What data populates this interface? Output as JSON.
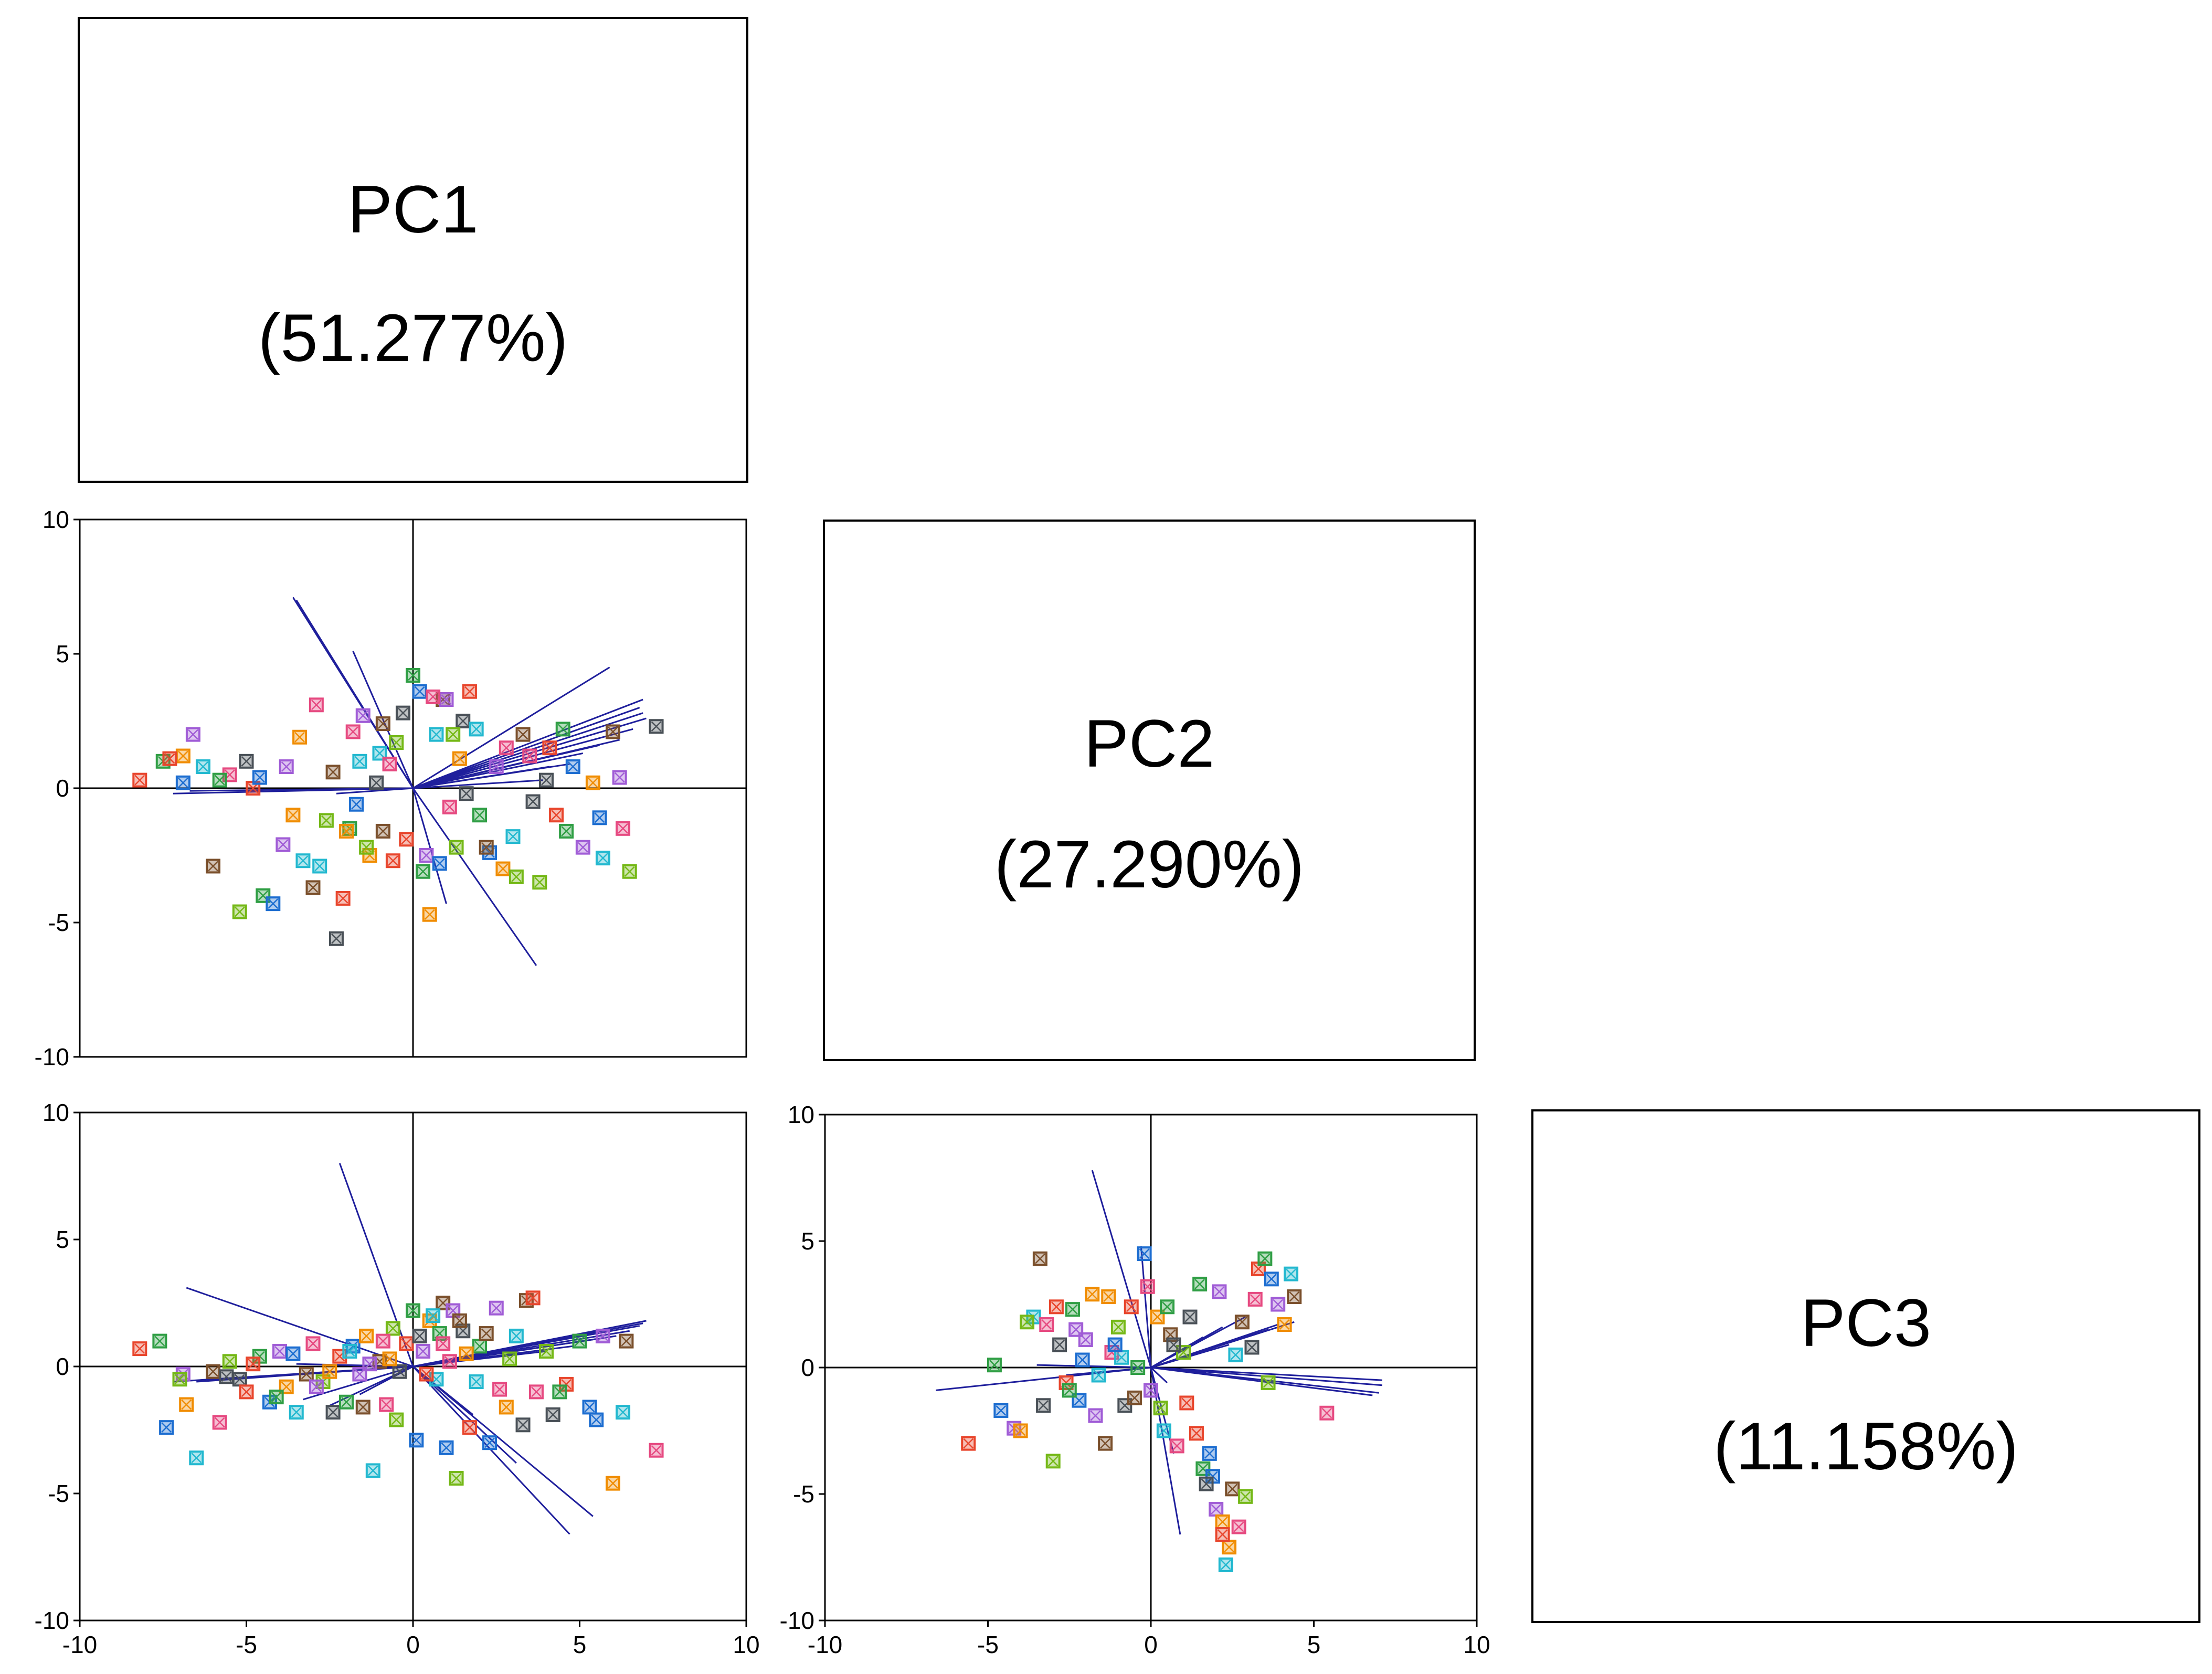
{
  "chart_data": {
    "type": "scatter",
    "title": "",
    "description_source": "PCA scatterplot matrix (biplot) with variance explained per component",
    "components": [
      {
        "name": "PC1",
        "variance": "(51.277%)"
      },
      {
        "name": "PC2",
        "variance": "(27.290%)"
      },
      {
        "name": "PC3",
        "variance": "(11.158%)"
      }
    ],
    "axis_range": [
      -10,
      10
    ],
    "ticks": [
      -10,
      -5,
      0,
      5,
      10
    ],
    "tick_labels": [
      "-10",
      "-5",
      "0",
      "5",
      "10"
    ],
    "loading_color": "#1f1f9c",
    "axis_color": "#000000",
    "point_colors": [
      "#e8452c",
      "#2f9e44",
      "#1c6dd0",
      "#a05cd6",
      "#f08c00",
      "#22b8cf",
      "#7a4f2b",
      "#e64980",
      "#74b816",
      "#495057"
    ],
    "panels": [
      {
        "id": "pc2-vs-pc1",
        "x_component": "PC1",
        "y_component": "PC2",
        "points": [
          [
            -8.2,
            0.3
          ],
          [
            -7.5,
            1.0
          ],
          [
            -6.9,
            0.2
          ],
          [
            -6.6,
            2.0
          ],
          [
            -6.9,
            1.2
          ],
          [
            -6.3,
            0.8
          ],
          [
            -6.0,
            -2.9
          ],
          [
            -5.5,
            0.5
          ],
          [
            -5.2,
            -4.6
          ],
          [
            -5.0,
            1.0
          ],
          [
            -4.8,
            0.0
          ],
          [
            -4.5,
            -4.0
          ],
          [
            -4.2,
            -4.3
          ],
          [
            -3.8,
            0.8
          ],
          [
            -3.6,
            -1.0
          ],
          [
            -3.3,
            -2.7
          ],
          [
            -3.0,
            -3.7
          ],
          [
            -2.9,
            3.1
          ],
          [
            -2.6,
            -1.2
          ],
          [
            -2.3,
            -5.6
          ],
          [
            -2.1,
            -4.1
          ],
          [
            -1.9,
            -1.5
          ],
          [
            -1.7,
            -0.6
          ],
          [
            -1.5,
            2.7
          ],
          [
            -1.3,
            -2.5
          ],
          [
            -1.0,
            1.3
          ],
          [
            -0.9,
            -1.6
          ],
          [
            -0.7,
            0.9
          ],
          [
            -0.5,
            1.7
          ],
          [
            -0.3,
            2.8
          ],
          [
            -0.2,
            -1.9
          ],
          [
            0.0,
            4.2
          ],
          [
            0.2,
            3.6
          ],
          [
            0.4,
            -2.5
          ],
          [
            0.5,
            -4.7
          ],
          [
            0.7,
            2.0
          ],
          [
            0.9,
            3.3
          ],
          [
            1.1,
            -0.7
          ],
          [
            1.3,
            -2.2
          ],
          [
            1.5,
            2.5
          ],
          [
            1.7,
            3.6
          ],
          [
            2.0,
            -1.0
          ],
          [
            2.3,
            -2.4
          ],
          [
            2.5,
            0.8
          ],
          [
            2.7,
            -3.0
          ],
          [
            3.0,
            -1.8
          ],
          [
            3.3,
            2.0
          ],
          [
            3.5,
            1.2
          ],
          [
            3.8,
            -3.5
          ],
          [
            4.0,
            0.3
          ],
          [
            4.3,
            -1.0
          ],
          [
            4.5,
            2.2
          ],
          [
            4.8,
            0.8
          ],
          [
            5.1,
            -2.2
          ],
          [
            5.4,
            0.2
          ],
          [
            5.7,
            -2.6
          ],
          [
            6.0,
            2.1
          ],
          [
            6.3,
            -1.5
          ],
          [
            6.5,
            -3.1
          ],
          [
            7.3,
            2.3
          ],
          [
            -7.3,
            1.1
          ],
          [
            -5.8,
            0.3
          ],
          [
            -4.6,
            0.4
          ],
          [
            -3.9,
            -2.1
          ],
          [
            -3.4,
            1.9
          ],
          [
            -2.8,
            -2.9
          ],
          [
            -2.4,
            0.6
          ],
          [
            -1.8,
            2.1
          ],
          [
            -1.4,
            -2.2
          ],
          [
            -1.1,
            0.2
          ],
          [
            -0.6,
            -2.7
          ],
          [
            0.3,
            -3.1
          ],
          [
            0.8,
            -2.8
          ],
          [
            1.0,
            3.3
          ],
          [
            1.4,
            1.1
          ],
          [
            1.9,
            2.2
          ],
          [
            2.2,
            -2.2
          ],
          [
            2.8,
            1.5
          ],
          [
            3.1,
            -3.3
          ],
          [
            3.6,
            -0.5
          ],
          [
            4.1,
            1.5
          ],
          [
            4.6,
            -1.6
          ],
          [
            5.6,
            -1.1
          ],
          [
            6.2,
            0.4
          ],
          [
            -2.0,
            -1.6
          ],
          [
            -1.6,
            1.0
          ],
          [
            -0.9,
            2.4
          ],
          [
            0.6,
            3.4
          ],
          [
            1.2,
            2.0
          ],
          [
            1.6,
            -0.2
          ]
        ],
        "loadings": [
          [
            -3.6,
            7.1
          ],
          [
            -3.5,
            7.0
          ],
          [
            -1.8,
            5.1
          ],
          [
            5.9,
            4.5
          ],
          [
            6.9,
            3.3
          ],
          [
            6.8,
            3.0
          ],
          [
            6.9,
            2.8
          ],
          [
            7.0,
            2.6
          ],
          [
            6.6,
            2.2
          ],
          [
            6.2,
            1.8
          ],
          [
            5.6,
            1.6
          ],
          [
            5.1,
            1.3
          ],
          [
            4.7,
            0.9
          ],
          [
            4.1,
            0.8
          ],
          [
            3.9,
            0.3
          ],
          [
            -7.2,
            -0.2
          ],
          [
            -6.7,
            -0.1
          ],
          [
            -2.3,
            -0.2
          ],
          [
            3.7,
            -6.6
          ],
          [
            1.0,
            -4.3
          ]
        ]
      },
      {
        "id": "pc3-vs-pc1",
        "x_component": "PC1",
        "y_component": "PC3",
        "points": [
          [
            -8.2,
            0.7
          ],
          [
            -7.6,
            1.0
          ],
          [
            -7.4,
            -2.4
          ],
          [
            -6.9,
            -0.3
          ],
          [
            -6.8,
            -1.5
          ],
          [
            -6.5,
            -3.6
          ],
          [
            -6.0,
            -0.2
          ],
          [
            -5.8,
            -2.2
          ],
          [
            -5.5,
            0.2
          ],
          [
            -5.2,
            -0.5
          ],
          [
            -5.0,
            -1.0
          ],
          [
            -4.6,
            0.4
          ],
          [
            -4.3,
            -1.4
          ],
          [
            -4.0,
            0.6
          ],
          [
            -3.8,
            -0.8
          ],
          [
            -3.5,
            -1.8
          ],
          [
            -3.2,
            -0.3
          ],
          [
            -3.0,
            0.9
          ],
          [
            -2.7,
            -0.6
          ],
          [
            -2.4,
            -1.8
          ],
          [
            -2.2,
            0.4
          ],
          [
            -2.0,
            -1.4
          ],
          [
            -1.8,
            0.8
          ],
          [
            -1.6,
            -0.3
          ],
          [
            -1.4,
            1.2
          ],
          [
            -1.2,
            -4.1
          ],
          [
            -1.0,
            0.2
          ],
          [
            -0.8,
            -1.5
          ],
          [
            -0.6,
            1.5
          ],
          [
            -0.4,
            -0.2
          ],
          [
            -0.2,
            0.9
          ],
          [
            0.0,
            2.2
          ],
          [
            0.1,
            -2.9
          ],
          [
            0.3,
            0.6
          ],
          [
            0.5,
            1.8
          ],
          [
            0.7,
            -0.5
          ],
          [
            0.9,
            2.5
          ],
          [
            1.1,
            0.2
          ],
          [
            1.3,
            -4.4
          ],
          [
            1.5,
            1.4
          ],
          [
            1.7,
            -2.4
          ],
          [
            2.0,
            0.8
          ],
          [
            2.3,
            -3.0
          ],
          [
            2.5,
            2.3
          ],
          [
            2.8,
            -1.6
          ],
          [
            3.1,
            1.2
          ],
          [
            3.4,
            2.6
          ],
          [
            3.7,
            -1.0
          ],
          [
            4.0,
            0.6
          ],
          [
            4.2,
            -1.9
          ],
          [
            4.6,
            -0.7
          ],
          [
            5.0,
            1.0
          ],
          [
            5.3,
            -1.6
          ],
          [
            5.7,
            1.2
          ],
          [
            6.0,
            -4.6
          ],
          [
            6.3,
            -1.8
          ],
          [
            6.4,
            1.0
          ],
          [
            7.3,
            -3.3
          ],
          [
            -7.0,
            -0.5
          ],
          [
            -5.6,
            -0.4
          ],
          [
            -4.8,
            0.1
          ],
          [
            -4.1,
            -1.2
          ],
          [
            -3.6,
            0.5
          ],
          [
            -2.9,
            -0.8
          ],
          [
            -2.5,
            -0.2
          ],
          [
            -1.9,
            0.6
          ],
          [
            -1.5,
            -1.6
          ],
          [
            -0.9,
            1.0
          ],
          [
            -0.5,
            -2.1
          ],
          [
            0.2,
            1.2
          ],
          [
            0.4,
            -0.3
          ],
          [
            0.8,
            1.3
          ],
          [
            1.0,
            -3.2
          ],
          [
            1.2,
            2.2
          ],
          [
            1.6,
            0.5
          ],
          [
            1.9,
            -0.6
          ],
          [
            2.2,
            1.3
          ],
          [
            2.6,
            -0.9
          ],
          [
            2.9,
            0.3
          ],
          [
            3.3,
            -2.3
          ],
          [
            3.6,
            2.7
          ],
          [
            4.4,
            -1.0
          ],
          [
            5.5,
            -2.1
          ],
          [
            -1.3,
            0.1
          ],
          [
            -0.7,
            0.3
          ],
          [
            0.6,
            2.0
          ],
          [
            1.4,
            1.8
          ],
          [
            0.9,
            0.9
          ]
        ],
        "loadings": [
          [
            -2.2,
            8.0
          ],
          [
            -6.8,
            3.1
          ],
          [
            7.0,
            1.8
          ],
          [
            6.9,
            1.7
          ],
          [
            6.8,
            1.6
          ],
          [
            6.5,
            1.4
          ],
          [
            6.1,
            1.2
          ],
          [
            5.6,
            1.1
          ],
          [
            4.8,
            0.8
          ],
          [
            4.0,
            0.6
          ],
          [
            -7.2,
            -0.6
          ],
          [
            -6.5,
            -0.6
          ],
          [
            -3.3,
            -1.3
          ],
          [
            -2.6,
            -1.6
          ],
          [
            -1.6,
            -1.1
          ],
          [
            4.7,
            -6.6
          ],
          [
            5.4,
            -5.9
          ],
          [
            3.1,
            -3.8
          ],
          [
            1.8,
            -1.9
          ],
          [
            -3.5,
            0.1
          ]
        ]
      },
      {
        "id": "pc3-vs-pc2",
        "x_component": "PC2",
        "y_component": "PC3",
        "points": [
          [
            -5.6,
            -3.0
          ],
          [
            -4.8,
            0.1
          ],
          [
            -4.6,
            -1.7
          ],
          [
            -4.2,
            -2.4
          ],
          [
            -4.0,
            -2.5
          ],
          [
            -3.6,
            2.0
          ],
          [
            -3.4,
            4.3
          ],
          [
            -3.2,
            1.7
          ],
          [
            -3.0,
            -3.7
          ],
          [
            -2.8,
            0.9
          ],
          [
            -2.6,
            -0.6
          ],
          [
            -2.4,
            2.3
          ],
          [
            -2.2,
            -1.3
          ],
          [
            -2.0,
            1.1
          ],
          [
            -1.8,
            2.9
          ],
          [
            -1.6,
            -0.3
          ],
          [
            -1.4,
            -3.0
          ],
          [
            -1.2,
            0.6
          ],
          [
            -1.0,
            1.6
          ],
          [
            -0.8,
            -1.5
          ],
          [
            -0.6,
            2.4
          ],
          [
            -0.4,
            0.0
          ],
          [
            -0.2,
            4.5
          ],
          [
            0.0,
            -0.9
          ],
          [
            0.2,
            2.0
          ],
          [
            0.4,
            -2.5
          ],
          [
            0.6,
            1.3
          ],
          [
            0.8,
            -3.1
          ],
          [
            1.0,
            0.6
          ],
          [
            1.2,
            2.0
          ],
          [
            1.4,
            -2.6
          ],
          [
            1.6,
            -4.0
          ],
          [
            1.8,
            -3.4
          ],
          [
            2.0,
            -5.6
          ],
          [
            2.2,
            -6.1
          ],
          [
            2.3,
            -7.8
          ],
          [
            2.5,
            -4.8
          ],
          [
            2.7,
            -6.3
          ],
          [
            2.9,
            -5.1
          ],
          [
            3.1,
            0.8
          ],
          [
            3.3,
            3.9
          ],
          [
            3.5,
            4.3
          ],
          [
            3.7,
            3.5
          ],
          [
            3.9,
            2.5
          ],
          [
            4.1,
            1.7
          ],
          [
            4.3,
            3.7
          ],
          [
            4.4,
            2.8
          ],
          [
            5.4,
            -1.8
          ],
          [
            -3.8,
            1.8
          ],
          [
            -3.3,
            -1.5
          ],
          [
            -2.9,
            2.4
          ],
          [
            -2.5,
            -0.9
          ],
          [
            -2.1,
            0.3
          ],
          [
            -1.7,
            -1.9
          ],
          [
            -1.3,
            2.8
          ],
          [
            -0.9,
            0.4
          ],
          [
            -0.5,
            -1.2
          ],
          [
            -0.1,
            3.2
          ],
          [
            0.3,
            -1.6
          ],
          [
            0.7,
            0.9
          ],
          [
            1.1,
            -1.4
          ],
          [
            1.5,
            3.3
          ],
          [
            1.9,
            -4.3
          ],
          [
            2.1,
            3.0
          ],
          [
            2.4,
            -7.1
          ],
          [
            2.6,
            0.5
          ],
          [
            2.8,
            1.8
          ],
          [
            3.2,
            2.7
          ],
          [
            3.6,
            -0.6
          ],
          [
            1.7,
            -4.6
          ],
          [
            2.2,
            -6.6
          ],
          [
            0.5,
            2.4
          ],
          [
            -1.1,
            0.9
          ],
          [
            -2.3,
            1.5
          ]
        ],
        "loadings": [
          [
            -1.8,
            7.8
          ],
          [
            -6.6,
            -0.9
          ],
          [
            7.1,
            -0.5
          ],
          [
            7.1,
            -0.7
          ],
          [
            7.0,
            -1.0
          ],
          [
            6.8,
            -1.1
          ],
          [
            4.4,
            1.8
          ],
          [
            3.9,
            1.7
          ],
          [
            3.6,
            1.5
          ],
          [
            2.9,
            2.0
          ],
          [
            2.2,
            1.6
          ],
          [
            1.6,
            1.2
          ],
          [
            -3.5,
            0.1
          ],
          [
            -2.6,
            -0.3
          ],
          [
            0.9,
            -6.6
          ],
          [
            -0.3,
            4.8
          ],
          [
            0.7,
            -3.4
          ],
          [
            1.7,
            -0.2
          ],
          [
            2.4,
            0.9
          ],
          [
            0.5,
            -0.6
          ]
        ]
      }
    ]
  }
}
